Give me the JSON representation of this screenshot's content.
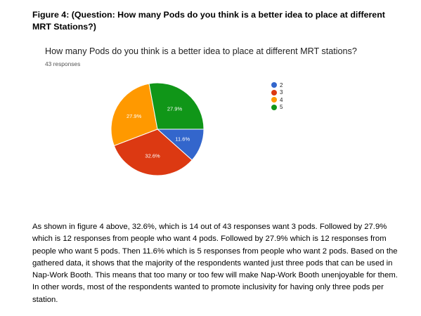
{
  "caption": "Figure 4: (Question: How many Pods do you think is a better idea to place at different MRT Stations?)",
  "form": {
    "question": "How many Pods do you think is a better idea to place at different MRT stations?",
    "responses": "43 responses"
  },
  "chart_data": {
    "type": "pie",
    "categories": [
      "2",
      "3",
      "4",
      "5"
    ],
    "values": [
      11.6,
      32.6,
      27.9,
      27.9
    ],
    "labels": [
      "11.6%",
      "32.6%",
      "27.9%",
      "27.9%"
    ],
    "colors": [
      "#3366cc",
      "#dc3912",
      "#ff9900",
      "#109618"
    ],
    "legend_position": "right"
  },
  "paragraph": "As shown in figure 4 above, 32.6%, which is 14 out of 43 responses want 3 pods. Followed by 27.9% which is 12 responses from people who want 4 pods. Followed by 27.9% which is 12 responses from people who want 5 pods. Then 11.6% which is 5 responses from people who want 2 pods. Based on the gathered data, it shows that the majority of the respondents wanted just three pods that can be used in Nap-Work Booth. This means that too many or too few will make Nap-Work Booth unenjoyable for them. In other words, most of the respondents wanted to promote inclusivity for having only three pods per station."
}
